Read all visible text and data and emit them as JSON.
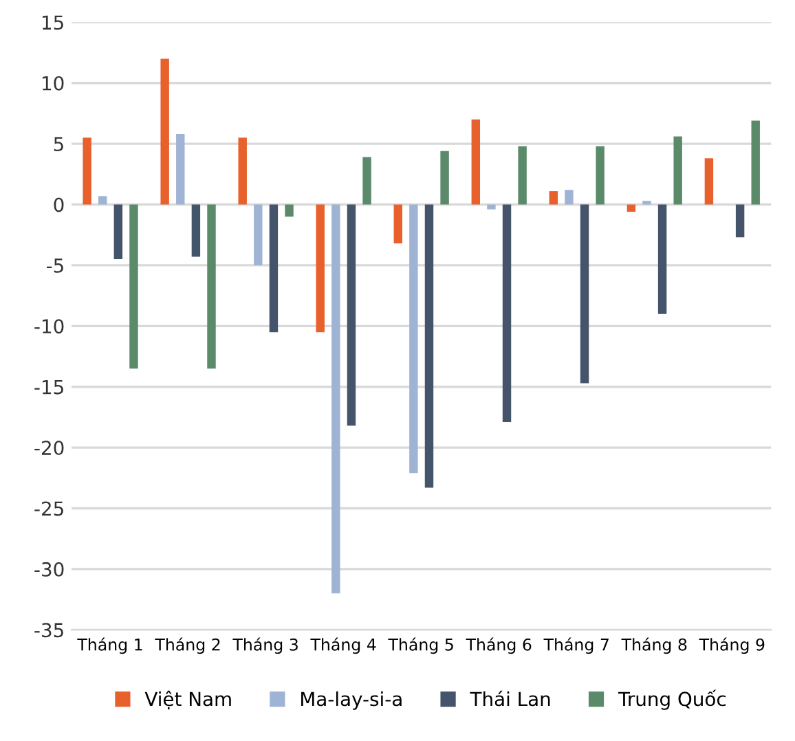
{
  "chart_data": {
    "type": "bar",
    "categories": [
      "Tháng 1",
      "Tháng 2",
      "Tháng 3",
      "Tháng 4",
      "Tháng 5",
      "Tháng 6",
      "Tháng 7",
      "Tháng 8",
      "Tháng 9"
    ],
    "series": [
      {
        "name": "Việt Nam",
        "color": "#e8602c",
        "values": [
          5.5,
          12,
          5.5,
          -10.5,
          -3.2,
          7.0,
          1.1,
          -0.6,
          3.8
        ]
      },
      {
        "name": "Ma-lay-si-a",
        "color": "#9fb4d4",
        "values": [
          0.7,
          5.8,
          -5,
          -32,
          -22.1,
          -0.4,
          1.2,
          0.3,
          null
        ]
      },
      {
        "name": "Thái Lan",
        "color": "#44546a",
        "values": [
          -4.5,
          -4.3,
          -10.5,
          -18.2,
          -23.3,
          -17.9,
          -14.7,
          -9,
          -2.7
        ]
      },
      {
        "name": "Trung Quốc",
        "color": "#5a8a6a",
        "values": [
          -13.5,
          -13.5,
          -1,
          3.9,
          4.4,
          4.8,
          4.8,
          5.6,
          6.9
        ]
      }
    ],
    "ylim": [
      -35,
      15
    ],
    "yticks": [
      -35,
      -30,
      -25,
      -20,
      -15,
      -10,
      -5,
      0,
      5,
      10,
      15
    ],
    "grid": "y",
    "legend": "bottom"
  }
}
